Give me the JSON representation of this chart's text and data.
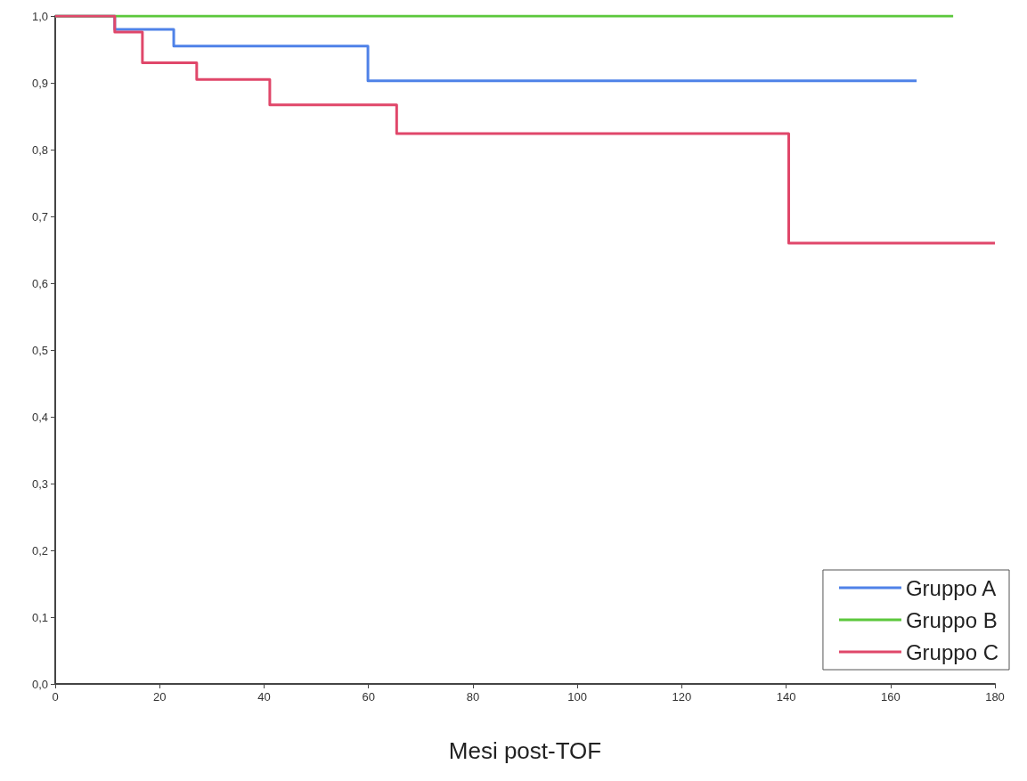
{
  "chart_data": {
    "type": "step",
    "xlabel": "Mesi post-TOF",
    "xlim": [
      0,
      180
    ],
    "xticks": [
      0,
      20,
      40,
      60,
      80,
      100,
      120,
      140,
      160,
      180
    ],
    "ylim": [
      0,
      1
    ],
    "yticks": [
      {
        "value": 0,
        "label": "0,0"
      },
      {
        "value": 0.1,
        "label": "0,1"
      },
      {
        "value": 0.2,
        "label": "0,2"
      },
      {
        "value": 0.3,
        "label": "0,3"
      },
      {
        "value": 0.4,
        "label": "0,4"
      },
      {
        "value": 0.5,
        "label": "0,5"
      },
      {
        "value": 0.6,
        "label": "0,6"
      },
      {
        "value": 0.7,
        "label": "0,7"
      },
      {
        "value": 0.8,
        "label": "0,8"
      },
      {
        "value": 0.9,
        "label": "0,9"
      },
      {
        "value": 1,
        "label": "1,0"
      }
    ],
    "grid": false,
    "legend": "bottom right",
    "marker": "none",
    "line_style": "solid",
    "series": [
      {
        "name": "Gruppo A",
        "color": "#4f82e8",
        "x": [
          0,
          11.4,
          22.7,
          59.9,
          165
        ],
        "values": [
          1,
          0.98,
          0.955,
          0.903,
          0.903
        ]
      },
      {
        "name": "Gruppo B",
        "color": "#5cc83c",
        "x": [
          0,
          172
        ],
        "values": [
          1,
          1
        ]
      },
      {
        "name": "Gruppo C",
        "color": "#e0476a",
        "x": [
          0,
          11.4,
          16.7,
          27.1,
          41.1,
          65.4,
          140.5,
          180
        ],
        "values": [
          1,
          0.976,
          0.93,
          0.905,
          0.867,
          0.824,
          0.66,
          0.66
        ]
      }
    ]
  }
}
